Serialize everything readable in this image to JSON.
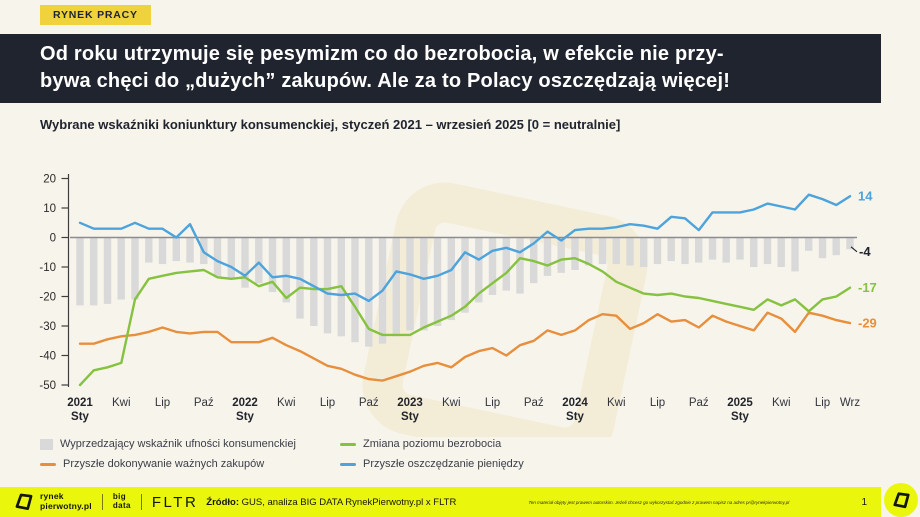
{
  "page": {
    "bg": "#f7f4ec",
    "dark": "#20242e"
  },
  "badge": {
    "label": "RYNEK PRACY",
    "bg": "#f0d23d",
    "fg": "#20242e"
  },
  "headline": {
    "bg": "#20242e",
    "fg": "#ffffff",
    "line1": "Od roku utrzymuje się pesymizm co do bezrobocia, w efekcie nie przy-",
    "line2": "bywa chęci do „dużych” zakupów. Ale za to Polacy oszczędzają więcej!"
  },
  "chart_data": {
    "type": "bar+line",
    "title": "Wybrane wskaźniki koniunktury konsumenckiej, styczeń 2021 – wrzesień 2025 [0 = neutralnie]",
    "x_start": "2021-01",
    "x_end": "2025-09",
    "interval": "monthly",
    "ylim": [
      -50,
      20
    ],
    "y_ticks": [
      20,
      10,
      0,
      -10,
      -20,
      -30,
      -40,
      -50
    ],
    "grid": "zero-line-only",
    "x_ticks": [
      {
        "i": 0,
        "t": "2021",
        "s": "Sty"
      },
      {
        "i": 3,
        "t": "Kwi"
      },
      {
        "i": 6,
        "t": "Lip"
      },
      {
        "i": 9,
        "t": "Paź"
      },
      {
        "i": 12,
        "t": "2022",
        "s": "Sty"
      },
      {
        "i": 15,
        "t": "Kwi"
      },
      {
        "i": 18,
        "t": "Lip"
      },
      {
        "i": 21,
        "t": "Paź"
      },
      {
        "i": 24,
        "t": "2023",
        "s": "Sty"
      },
      {
        "i": 27,
        "t": "Kwi"
      },
      {
        "i": 30,
        "t": "Lip"
      },
      {
        "i": 33,
        "t": "Paź"
      },
      {
        "i": 36,
        "t": "2024",
        "s": "Sty"
      },
      {
        "i": 39,
        "t": "Kwi"
      },
      {
        "i": 42,
        "t": "Lip"
      },
      {
        "i": 45,
        "t": "Paź"
      },
      {
        "i": 48,
        "t": "2025",
        "s": "Sty"
      },
      {
        "i": 51,
        "t": "Kwi"
      },
      {
        "i": 54,
        "t": "Lip"
      },
      {
        "i": 56,
        "t": "Wrz"
      }
    ],
    "series": [
      {
        "name": "Wyprzedzający wskaźnik ufności konsumenckiej",
        "type": "bar",
        "color": "#d9d9d9",
        "end_label": "-4",
        "end_label_color": "#20242e",
        "values": [
          -23,
          -23,
          -22.5,
          -21,
          -21,
          -8.5,
          -9,
          -8,
          -8.5,
          -9,
          -13.5,
          -14,
          -17,
          -15.5,
          -18.5,
          -22,
          -27.5,
          -30,
          -32.5,
          -33.5,
          -35.5,
          -37,
          -36,
          -33.5,
          -31.5,
          -31.5,
          -30,
          -28,
          -25.5,
          -22,
          -19.5,
          -18,
          -19,
          -15.5,
          -13,
          -12,
          -11,
          -9.5,
          -9,
          -9,
          -9.5,
          -10,
          -9,
          -8,
          -9,
          -8.5,
          -7.5,
          -8.5,
          -7.5,
          -10,
          -9,
          -10,
          -11.5,
          -4.5,
          -7,
          -6,
          -4
        ]
      },
      {
        "name": "Przyszłe dokonywanie ważnych zakupów",
        "type": "line",
        "color": "#e78f3c",
        "end_label": "-29",
        "end_label_color": "#e78f3c",
        "values": [
          -36,
          -36,
          -34.5,
          -33.5,
          -33,
          -32,
          -30.5,
          -32,
          -32.5,
          -32,
          -32,
          -35.5,
          -35.5,
          -35.5,
          -34,
          -36.5,
          -38.5,
          -41,
          -43.5,
          -44.5,
          -46.5,
          -48,
          -48.5,
          -47,
          -45.5,
          -43.5,
          -42.5,
          -44,
          -40.5,
          -38.5,
          -37.5,
          -40,
          -36.5,
          -35,
          -31.5,
          -33,
          -31.5,
          -28,
          -26,
          -26.5,
          -31,
          -29,
          -26,
          -28.5,
          -28,
          -30.5,
          -26.5,
          -28.5,
          -30,
          -31.5,
          -25.5,
          -27.5,
          -32,
          -25.5,
          -26.5,
          -28,
          -29
        ]
      },
      {
        "name": "Zmiana poziomu bezrobocia",
        "type": "line",
        "color": "#85c23f",
        "end_label": "-17",
        "end_label_color": "#85c23f",
        "values": [
          -50,
          -45,
          -44,
          -42.5,
          -21,
          -14,
          -13,
          -12,
          -11.5,
          -11,
          -13.5,
          -14,
          -13.5,
          -16.5,
          -15,
          -20.5,
          -17,
          -17.5,
          -17.5,
          -16.5,
          -23.5,
          -31,
          -33,
          -33,
          -33,
          -30.5,
          -28.5,
          -26.5,
          -23.5,
          -19,
          -15.5,
          -12,
          -7,
          -8,
          -9.5,
          -7.5,
          -7,
          -9,
          -11.5,
          -15,
          -17,
          -19,
          -19.5,
          -19,
          -20,
          -20.5,
          -21.5,
          -22.5,
          -23.5,
          -24.5,
          -21,
          -23,
          -21,
          -25,
          -21,
          -20,
          -17
        ]
      },
      {
        "name": "Przyszłe oszczędzanie pieniędzy",
        "type": "line",
        "color": "#4da3dc",
        "end_label": "14",
        "end_label_color": "#4da3dc",
        "values": [
          5,
          3,
          3,
          3,
          5,
          3,
          3,
          0,
          4.5,
          -5,
          -8,
          -10,
          -13,
          -8.5,
          -13.5,
          -13,
          -14,
          -16.5,
          -19,
          -19.5,
          -19,
          -21.5,
          -18,
          -11.5,
          -12.5,
          -14,
          -13,
          -11,
          -5,
          -7.5,
          -4.5,
          -3.5,
          -5,
          -2,
          2,
          -1,
          2.5,
          3,
          3,
          3.5,
          4.5,
          4,
          3,
          7,
          6.5,
          2.5,
          8.5,
          8.5,
          8.5,
          9.5,
          11.5,
          10.5,
          9.5,
          14.5,
          13,
          11,
          14
        ]
      }
    ],
    "legend_position": "bottom-left"
  },
  "legend": {
    "items": [
      {
        "label": "Wyprzedzający wskaźnik ufności konsumenckiej",
        "marker": "square",
        "color": "#d9d9d9"
      },
      {
        "label": "Zmiana poziomu bezrobocia",
        "marker": "line",
        "color": "#85c23f"
      },
      {
        "label": "Przyszłe dokonywanie ważnych zakupów",
        "marker": "line",
        "color": "#e78f3c"
      },
      {
        "label": "Przyszłe oszczędzanie pieniędzy",
        "marker": "line",
        "color": "#4da3dc"
      }
    ]
  },
  "footer": {
    "bg": "#eaf70d",
    "brand_line1": "rynek",
    "brand_line2": "pierwotny.pl",
    "bigdata_line1": "big",
    "bigdata_line2": "data",
    "fltr": "FLTR",
    "source_label": "Źródło:",
    "source_rest": " GUS, analiza BIG DATA RynekPierwotny.pl x FLTR",
    "copyright_text": "Ten materiał objęty jest prawem autorskim. Jeżeli chcesz go wykorzystać zgodnie z prawem napisz na adres ",
    "copyright_link": "pr@rynekpierwotny.pl",
    "page_number": "1"
  }
}
